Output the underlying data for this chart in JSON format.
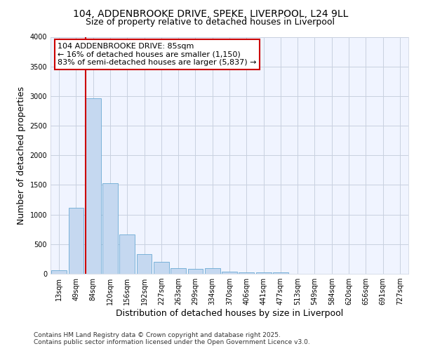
{
  "title": "104, ADDENBROOKE DRIVE, SPEKE, LIVERPOOL, L24 9LL",
  "subtitle": "Size of property relative to detached houses in Liverpool",
  "xlabel": "Distribution of detached houses by size in Liverpool",
  "ylabel": "Number of detached properties",
  "categories": [
    "13sqm",
    "49sqm",
    "84sqm",
    "120sqm",
    "156sqm",
    "192sqm",
    "227sqm",
    "263sqm",
    "299sqm",
    "334sqm",
    "370sqm",
    "406sqm",
    "441sqm",
    "477sqm",
    "513sqm",
    "549sqm",
    "584sqm",
    "620sqm",
    "656sqm",
    "691sqm",
    "727sqm"
  ],
  "values": [
    55,
    1110,
    2960,
    1530,
    660,
    335,
    200,
    95,
    85,
    90,
    30,
    20,
    25,
    25,
    0,
    0,
    0,
    0,
    0,
    0,
    0
  ],
  "bar_color": "#c5d8f0",
  "bar_edge_color": "#6aaad4",
  "vline_x_index": 2,
  "vline_color": "#cc0000",
  "annotation_lines": [
    "104 ADDENBROOKE DRIVE: 85sqm",
    "← 16% of detached houses are smaller (1,150)",
    "83% of semi-detached houses are larger (5,837) →"
  ],
  "annotation_box_edge_color": "#cc0000",
  "annotation_box_face_color": "#ffffff",
  "ylim": [
    0,
    4000
  ],
  "yticks": [
    0,
    500,
    1000,
    1500,
    2000,
    2500,
    3000,
    3500,
    4000
  ],
  "bg_color": "#ffffff",
  "plot_bg_color": "#f0f4ff",
  "grid_color": "#c8d0e0",
  "footer_line1": "Contains HM Land Registry data © Crown copyright and database right 2025.",
  "footer_line2": "Contains public sector information licensed under the Open Government Licence v3.0.",
  "title_fontsize": 10,
  "subtitle_fontsize": 9,
  "axis_label_fontsize": 9,
  "tick_fontsize": 7,
  "annotation_fontsize": 8,
  "footer_fontsize": 6.5
}
